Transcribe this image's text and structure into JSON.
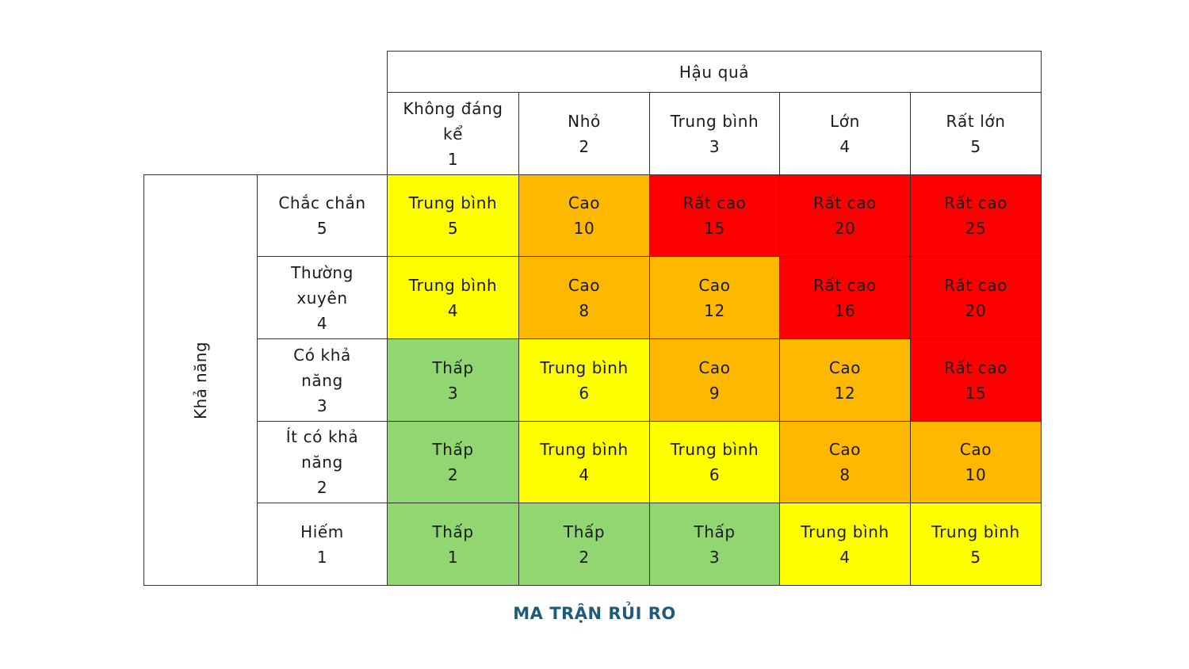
{
  "column_header": "Hậu quả",
  "row_header": "Khả năng",
  "caption": "MA TRẬN RỦI RO",
  "caption_color": "#1f5a7a",
  "consequences": [
    {
      "lines": [
        "Không đáng",
        "kể",
        "1"
      ]
    },
    {
      "lines": [
        "Nhỏ",
        "2"
      ]
    },
    {
      "lines": [
        "Trung bình",
        "3"
      ]
    },
    {
      "lines": [
        "Lớn",
        "4"
      ]
    },
    {
      "lines": [
        "Rất lớn",
        "5"
      ]
    }
  ],
  "likelihoods": [
    {
      "lines": [
        "Chắc chắn",
        "5"
      ]
    },
    {
      "lines": [
        "Thường",
        "xuyên",
        "4"
      ]
    },
    {
      "lines": [
        "Có khả",
        "năng",
        "3"
      ]
    },
    {
      "lines": [
        "Ít có khả",
        "năng",
        "2"
      ]
    },
    {
      "lines": [
        "Hiếm",
        "1"
      ]
    }
  ],
  "levels": {
    "Thấp": "#92d672",
    "Trung bình": "#ffff00",
    "Cao": "#ffb800",
    "Rất cao": "#ff0000"
  },
  "cells": [
    [
      {
        "level": "Trung bình",
        "score": "5"
      },
      {
        "level": "Cao",
        "score": "10"
      },
      {
        "level": "Rất cao",
        "score": "15"
      },
      {
        "level": "Rất cao",
        "score": "20"
      },
      {
        "level": "Rất cao",
        "score": "25"
      }
    ],
    [
      {
        "level": "Trung bình",
        "score": "4"
      },
      {
        "level": "Cao",
        "score": "8"
      },
      {
        "level": "Cao",
        "score": "12"
      },
      {
        "level": "Rất cao",
        "score": "16"
      },
      {
        "level": "Rất cao",
        "score": "20"
      }
    ],
    [
      {
        "level": "Thấp",
        "score": "3"
      },
      {
        "level": "Trung bình",
        "score": "6"
      },
      {
        "level": "Cao",
        "score": "9"
      },
      {
        "level": "Cao",
        "score": "12"
      },
      {
        "level": "Rất cao",
        "score": "15"
      }
    ],
    [
      {
        "level": "Thấp",
        "score": "2"
      },
      {
        "level": "Trung bình",
        "score": "4"
      },
      {
        "level": "Trung bình",
        "score": "6"
      },
      {
        "level": "Cao",
        "score": "8"
      },
      {
        "level": "Cao",
        "score": "10"
      }
    ],
    [
      {
        "level": "Thấp",
        "score": "1"
      },
      {
        "level": "Thấp",
        "score": "2"
      },
      {
        "level": "Thấp",
        "score": "3"
      },
      {
        "level": "Trung bình",
        "score": "4"
      },
      {
        "level": "Trung bình",
        "score": "5"
      }
    ]
  ]
}
